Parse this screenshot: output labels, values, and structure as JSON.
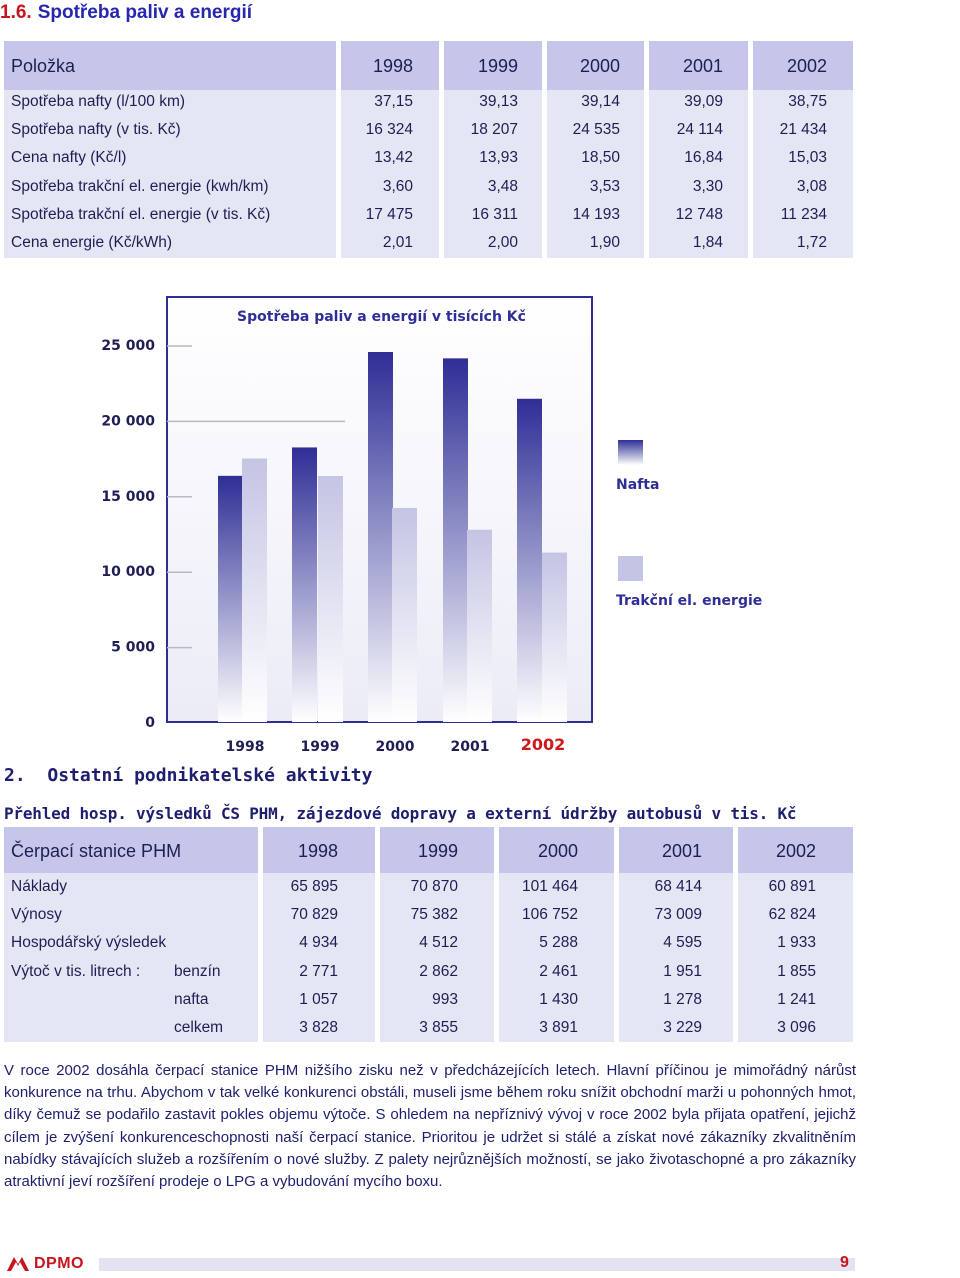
{
  "section": {
    "number": "1.6.",
    "title": "Spotřeba paliv a energií"
  },
  "table1": {
    "header": [
      "Položka",
      "1998",
      "1999",
      "2000",
      "2001",
      "2002"
    ],
    "rows": [
      [
        "Spotřeba nafty (l/100 km)",
        "37,15",
        "39,13",
        "39,14",
        "39,09",
        "38,75"
      ],
      [
        "Spotřeba nafty (v tis. Kč)",
        "16 324",
        "18 207",
        "24 535",
        "24 114",
        "21 434"
      ],
      [
        "Cena nafty (Kč/l)",
        "13,42",
        "13,93",
        "18,50",
        "16,84",
        "15,03"
      ],
      [
        "Spotřeba  trakční el. energie (kwh/km)",
        "3,60",
        "3,48",
        "3,53",
        "3,30",
        "3,08"
      ],
      [
        "Spotřeba trakční el. energie (v tis. Kč)",
        "17 475",
        "16 311",
        "14 193",
        "12 748",
        "11 234"
      ],
      [
        "Cena energie (Kč/kWh)",
        "2,01",
        "2,00",
        "1,90",
        "1,84",
        "1,72"
      ]
    ]
  },
  "chart_data": {
    "type": "bar",
    "title": "Spotřeba paliv a energií v tisících Kč",
    "categories": [
      "1998",
      "1999",
      "2000",
      "2001",
      "2002"
    ],
    "series": [
      {
        "name": "Nafta",
        "values": [
          16324,
          18207,
          24535,
          24114,
          21434
        ],
        "color": "#2e2e96"
      },
      {
        "name": "Trakční el. energie",
        "values": [
          17475,
          16311,
          14193,
          12748,
          11234
        ],
        "color": "#c4c4e4"
      }
    ],
    "ylim": [
      0,
      25000
    ],
    "yticks": [
      "25 000",
      "20 000",
      "15 000",
      "10 000",
      "5 000",
      "0"
    ],
    "ytick_values": [
      25000,
      20000,
      15000,
      10000,
      5000,
      0
    ],
    "highlight_category": "2002",
    "highlight_color": "#d01818",
    "legend_position": "right"
  },
  "section2": {
    "number": "2.",
    "title": "Ostatní podnikatelské aktivity"
  },
  "subtitle2": "Přehled hosp. výsledků ČS PHM, zájezdové dopravy a  externí údržby autobusů  v tis. Kč",
  "table2": {
    "header": [
      "Čerpací stanice PHM",
      "1998",
      "1999",
      "2000",
      "2001",
      "2002"
    ],
    "rows": [
      {
        "label": "Náklady",
        "sub": "",
        "values": [
          "65 895",
          "70 870",
          "101 464",
          "68 414",
          "60 891"
        ]
      },
      {
        "label": "Výnosy",
        "sub": "",
        "values": [
          "70 829",
          "75 382",
          "106 752",
          "73 009",
          "62 824"
        ]
      },
      {
        "label": "Hospodářský výsledek",
        "sub": "",
        "values": [
          "4 934",
          "4 512",
          "5 288",
          "4 595",
          "1 933"
        ]
      },
      {
        "label": "Výtoč v tis. litrech :",
        "sub": "benzín",
        "values": [
          "2 771",
          "2 862",
          "2 461",
          "1 951",
          "1 855"
        ]
      },
      {
        "label": "",
        "sub": "nafta",
        "values": [
          "1 057",
          "993",
          "1 430",
          "1 278",
          "1 241"
        ]
      },
      {
        "label": "",
        "sub": "celkem",
        "values": [
          "3 828",
          "3 855",
          "3 891",
          "3 229",
          "3 096"
        ]
      }
    ]
  },
  "paragraph": "V roce 2002 dosáhla čerpací stanice PHM nižšího zisku než v předcházejících letech. Hlavní příčinou je mimořádný nárůst konkurence na trhu. Abychom v tak velké konkurenci obstáli, museli jsme během roku snížit obchodní marži u pohonných hmot, díky čemuž se podařilo zastavit pokles objemu výtoče. S ohledem na nepříznivý vývoj v roce 2002 byla přijata opatření, jejichž cílem je zvýšení konkurenceschopnosti naší čerpací stanice. Prioritou je udržet si stálé a získat nové zákazníky zkvalitněním nabídky stávajících služeb a rozšířením o nové služby. Z palety nejrůznějších možností, se jako životaschopné a pro zákazníky atraktivní jeví rozšíření prodeje o LPG a vybudování mycího boxu.",
  "footer": {
    "logo_text": "DPMO",
    "page_number": "9"
  }
}
